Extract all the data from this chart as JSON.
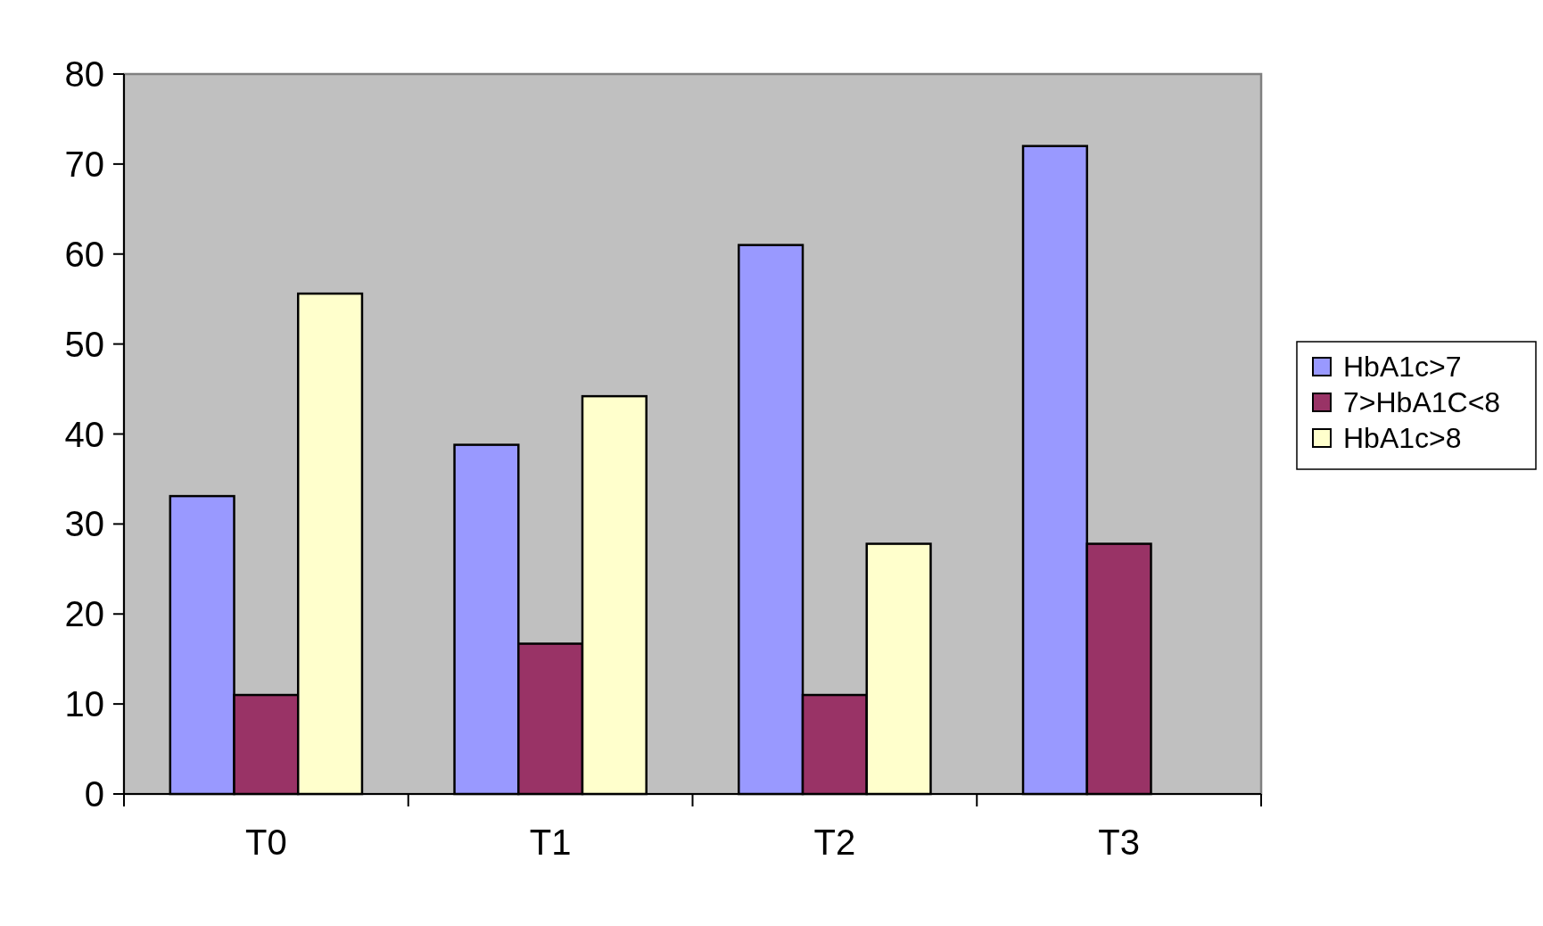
{
  "chart_data": {
    "type": "bar",
    "categories": [
      "T0",
      "T1",
      "T2",
      "T3"
    ],
    "series": [
      {
        "name": "HbA1c>7",
        "color": "#9999ff",
        "values": [
          33.1,
          38.8,
          61,
          72
        ]
      },
      {
        "name": "7>HbA1C<8",
        "color": "#993366",
        "values": [
          11,
          16.7,
          11,
          27.8
        ]
      },
      {
        "name": "HbA1c>8",
        "color": "#ffffcc",
        "values": [
          55.6,
          44.2,
          27.8,
          null
        ]
      }
    ],
    "ylim": [
      0,
      80
    ],
    "yticks": [
      0,
      10,
      20,
      30,
      40,
      50,
      60,
      70,
      80
    ],
    "grid": false,
    "legend": "right"
  }
}
